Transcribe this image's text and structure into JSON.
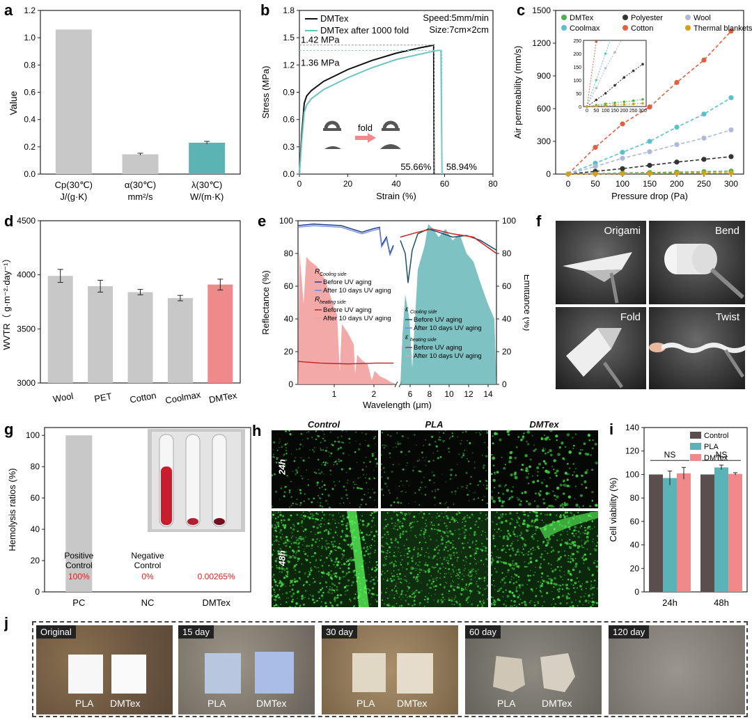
{
  "panels": {
    "a": "a",
    "b": "b",
    "c": "c",
    "d": "d",
    "e": "e",
    "f": "f",
    "g": "g",
    "h": "h",
    "i": "i",
    "j": "j"
  },
  "chart_data": [
    {
      "id": "a",
      "type": "bar",
      "categories": [
        "Cp(30℃)",
        "α(30℃)",
        "λ(30℃)"
      ],
      "category_units": [
        "J/(g·K)",
        "mm²/s",
        "W/(m·K)"
      ],
      "values": [
        1.06,
        0.145,
        0.23
      ],
      "errors": [
        0,
        0.008,
        0.01
      ],
      "colors": [
        "#c8c8c8",
        "#c8c8c8",
        "#5bb3b3"
      ],
      "ylabel": "Value",
      "ylim": [
        0,
        1.2
      ],
      "yticks": [
        0.0,
        0.2,
        0.4,
        0.6,
        0.8,
        1.0,
        1.2
      ]
    },
    {
      "id": "b",
      "type": "line",
      "xlabel": "Strain (%)",
      "ylabel": "Stress (MPa)",
      "xlim": [
        0,
        80
      ],
      "ylim": [
        0,
        1.8
      ],
      "xticks": [
        0,
        20,
        40,
        60,
        80
      ],
      "yticks": [
        0.0,
        0.3,
        0.6,
        0.9,
        1.2,
        1.5,
        1.8
      ],
      "series": [
        {
          "name": "DMTex",
          "color": "#111111",
          "x": [
            0,
            1,
            2,
            3,
            5,
            10,
            20,
            30,
            40,
            50,
            54,
            55.5,
            55.66
          ],
          "y": [
            0,
            0.45,
            0.78,
            0.86,
            0.92,
            1.02,
            1.15,
            1.25,
            1.33,
            1.39,
            1.41,
            1.42,
            0
          ]
        },
        {
          "name": "DMTex after 1000 fold",
          "color": "#6cc3c3",
          "x": [
            0,
            1,
            2,
            3,
            5,
            10,
            20,
            30,
            40,
            50,
            57,
            58.5,
            58.94
          ],
          "y": [
            0,
            0.38,
            0.68,
            0.76,
            0.83,
            0.93,
            1.06,
            1.17,
            1.26,
            1.32,
            1.36,
            1.36,
            0
          ]
        }
      ],
      "annotations": {
        "speed": "Speed:5mm/min",
        "size": "Size:7cm×2cm",
        "peak1": "1.42 MPa",
        "peak2": "1.36 MPa",
        "strain1": "55.66%",
        "strain2": "58.94%",
        "fold": "fold"
      }
    },
    {
      "id": "c",
      "type": "line",
      "xlabel": "Pressure drop (Pa)",
      "ylabel": "Air permeability (mm/s)",
      "xlim": [
        0,
        300
      ],
      "ylim": [
        0,
        1500
      ],
      "xticks": [
        0,
        50,
        100,
        150,
        200,
        250,
        300
      ],
      "yticks": [
        0,
        300,
        600,
        900,
        1200,
        1500
      ],
      "x": [
        0,
        50,
        100,
        150,
        200,
        250,
        300
      ],
      "series": [
        {
          "name": "DMTex",
          "color": "#4caf50",
          "values": [
            0,
            5,
            10,
            14,
            18,
            22,
            27
          ]
        },
        {
          "name": "Coolmax",
          "color": "#5bc0c8",
          "values": [
            0,
            100,
            200,
            300,
            430,
            550,
            700
          ]
        },
        {
          "name": "Polyester",
          "color": "#333333",
          "values": [
            0,
            25,
            50,
            80,
            110,
            135,
            160
          ]
        },
        {
          "name": "Cotton",
          "color": "#e06040",
          "values": [
            0,
            245,
            460,
            615,
            840,
            1045,
            1310
          ]
        },
        {
          "name": "Wool",
          "color": "#b0b8d8",
          "values": [
            0,
            70,
            145,
            205,
            270,
            330,
            405
          ]
        },
        {
          "name": "Thermal blankets",
          "color": "#d4a017",
          "values": [
            0,
            2,
            4,
            6,
            8,
            10,
            12
          ]
        }
      ],
      "inset": {
        "xticks": [
          0,
          50,
          100,
          150,
          200,
          250,
          300
        ],
        "yticks": [
          0,
          50,
          100,
          150,
          200,
          250
        ],
        "ylim": [
          0,
          250
        ]
      }
    },
    {
      "id": "d",
      "type": "bar",
      "categories": [
        "Wool",
        "PET",
        "Cotton",
        "Coolmax",
        "DMTex"
      ],
      "values": [
        3990,
        3895,
        3840,
        3785,
        3910
      ],
      "errors": [
        60,
        55,
        25,
        25,
        50
      ],
      "colors": [
        "#c8c8c8",
        "#c8c8c8",
        "#c8c8c8",
        "#c8c8c8",
        "#f08a8a"
      ],
      "ylabel": "WVTR（ g·m⁻²·day⁻¹）",
      "ylim": [
        3000,
        4500
      ],
      "yticks": [
        3000,
        3500,
        4000,
        4500
      ]
    },
    {
      "id": "e",
      "type": "line",
      "xlabel": "Wavelength (μm)",
      "ylabel": "Reflectance (%)",
      "y2label": "Emittance (%)",
      "yticks": [
        0,
        20,
        40,
        60,
        80,
        100
      ],
      "xticks_left": [
        "1",
        "2"
      ],
      "xticks_right": [
        "6",
        "8",
        "10",
        "12",
        "14"
      ],
      "legend_left": {
        "g1": "R",
        "g1sub": "Cooling side",
        "g1a": "Before UV aging",
        "g1b": "After 10 days UV aging",
        "g2": "R",
        "g2sub": "heating side",
        "g2a": "Before UV aging",
        "g2b": "After 10 days UV aging"
      },
      "legend_right": {
        "g1": "ε",
        "g1sub": "Cooling side",
        "g1a": "Before UV aging",
        "g1b": "After 10 days UV aging",
        "g2": "ε",
        "g2sub": "heating side",
        "g2a": "Before UV aging",
        "g2b": "After 10 days UV aging"
      }
    },
    {
      "id": "g",
      "type": "bar",
      "categories": [
        "PC",
        "NC",
        "DMTex"
      ],
      "values": [
        100,
        0,
        0.00265
      ],
      "colors": [
        "#c8c8c8",
        "#c8c8c8",
        "#c8c8c8"
      ],
      "ylabel": "Hemolysis ratios (%)",
      "ylim": [
        0,
        105
      ],
      "yticks": [
        0,
        20,
        40,
        60,
        80,
        100
      ],
      "labels": [
        {
          "l1": "Positive",
          "l2": "Control",
          "pct": "100%"
        },
        {
          "l1": "Negative",
          "l2": "Control",
          "pct": "0%"
        },
        {
          "l1": "",
          "l2": "",
          "pct": "0.00265%"
        }
      ]
    },
    {
      "id": "i",
      "type": "bar",
      "categories": [
        "24h",
        "48h"
      ],
      "series": [
        {
          "name": "Control",
          "color": "#5a4e4e",
          "values": [
            100,
            100
          ],
          "errors": [
            0,
            0
          ]
        },
        {
          "name": "PLA",
          "color": "#5bb3b8",
          "values": [
            97,
            106
          ],
          "errors": [
            6,
            2
          ]
        },
        {
          "name": "DMTex",
          "color": "#f08a8a",
          "values": [
            101,
            100.5
          ],
          "errors": [
            5,
            1
          ]
        }
      ],
      "ylabel": "Cell viability (%)",
      "ylim": [
        0,
        140
      ],
      "yticks": [
        0,
        20,
        40,
        60,
        80,
        100,
        120,
        140
      ],
      "sig": [
        "NS",
        "NS"
      ]
    }
  ],
  "panel_f": {
    "labels": [
      "Origami",
      "Bend",
      "Fold",
      "Twist"
    ]
  },
  "panel_h": {
    "columns": [
      "Control",
      "PLA",
      "DMTex"
    ],
    "rows": [
      "24h",
      "48h"
    ]
  },
  "panel_j": {
    "stages": [
      "Original",
      "15 day",
      "30 day",
      "60 day",
      "120 day"
    ],
    "sample_left": "PLA",
    "sample_right": "DMTex"
  }
}
